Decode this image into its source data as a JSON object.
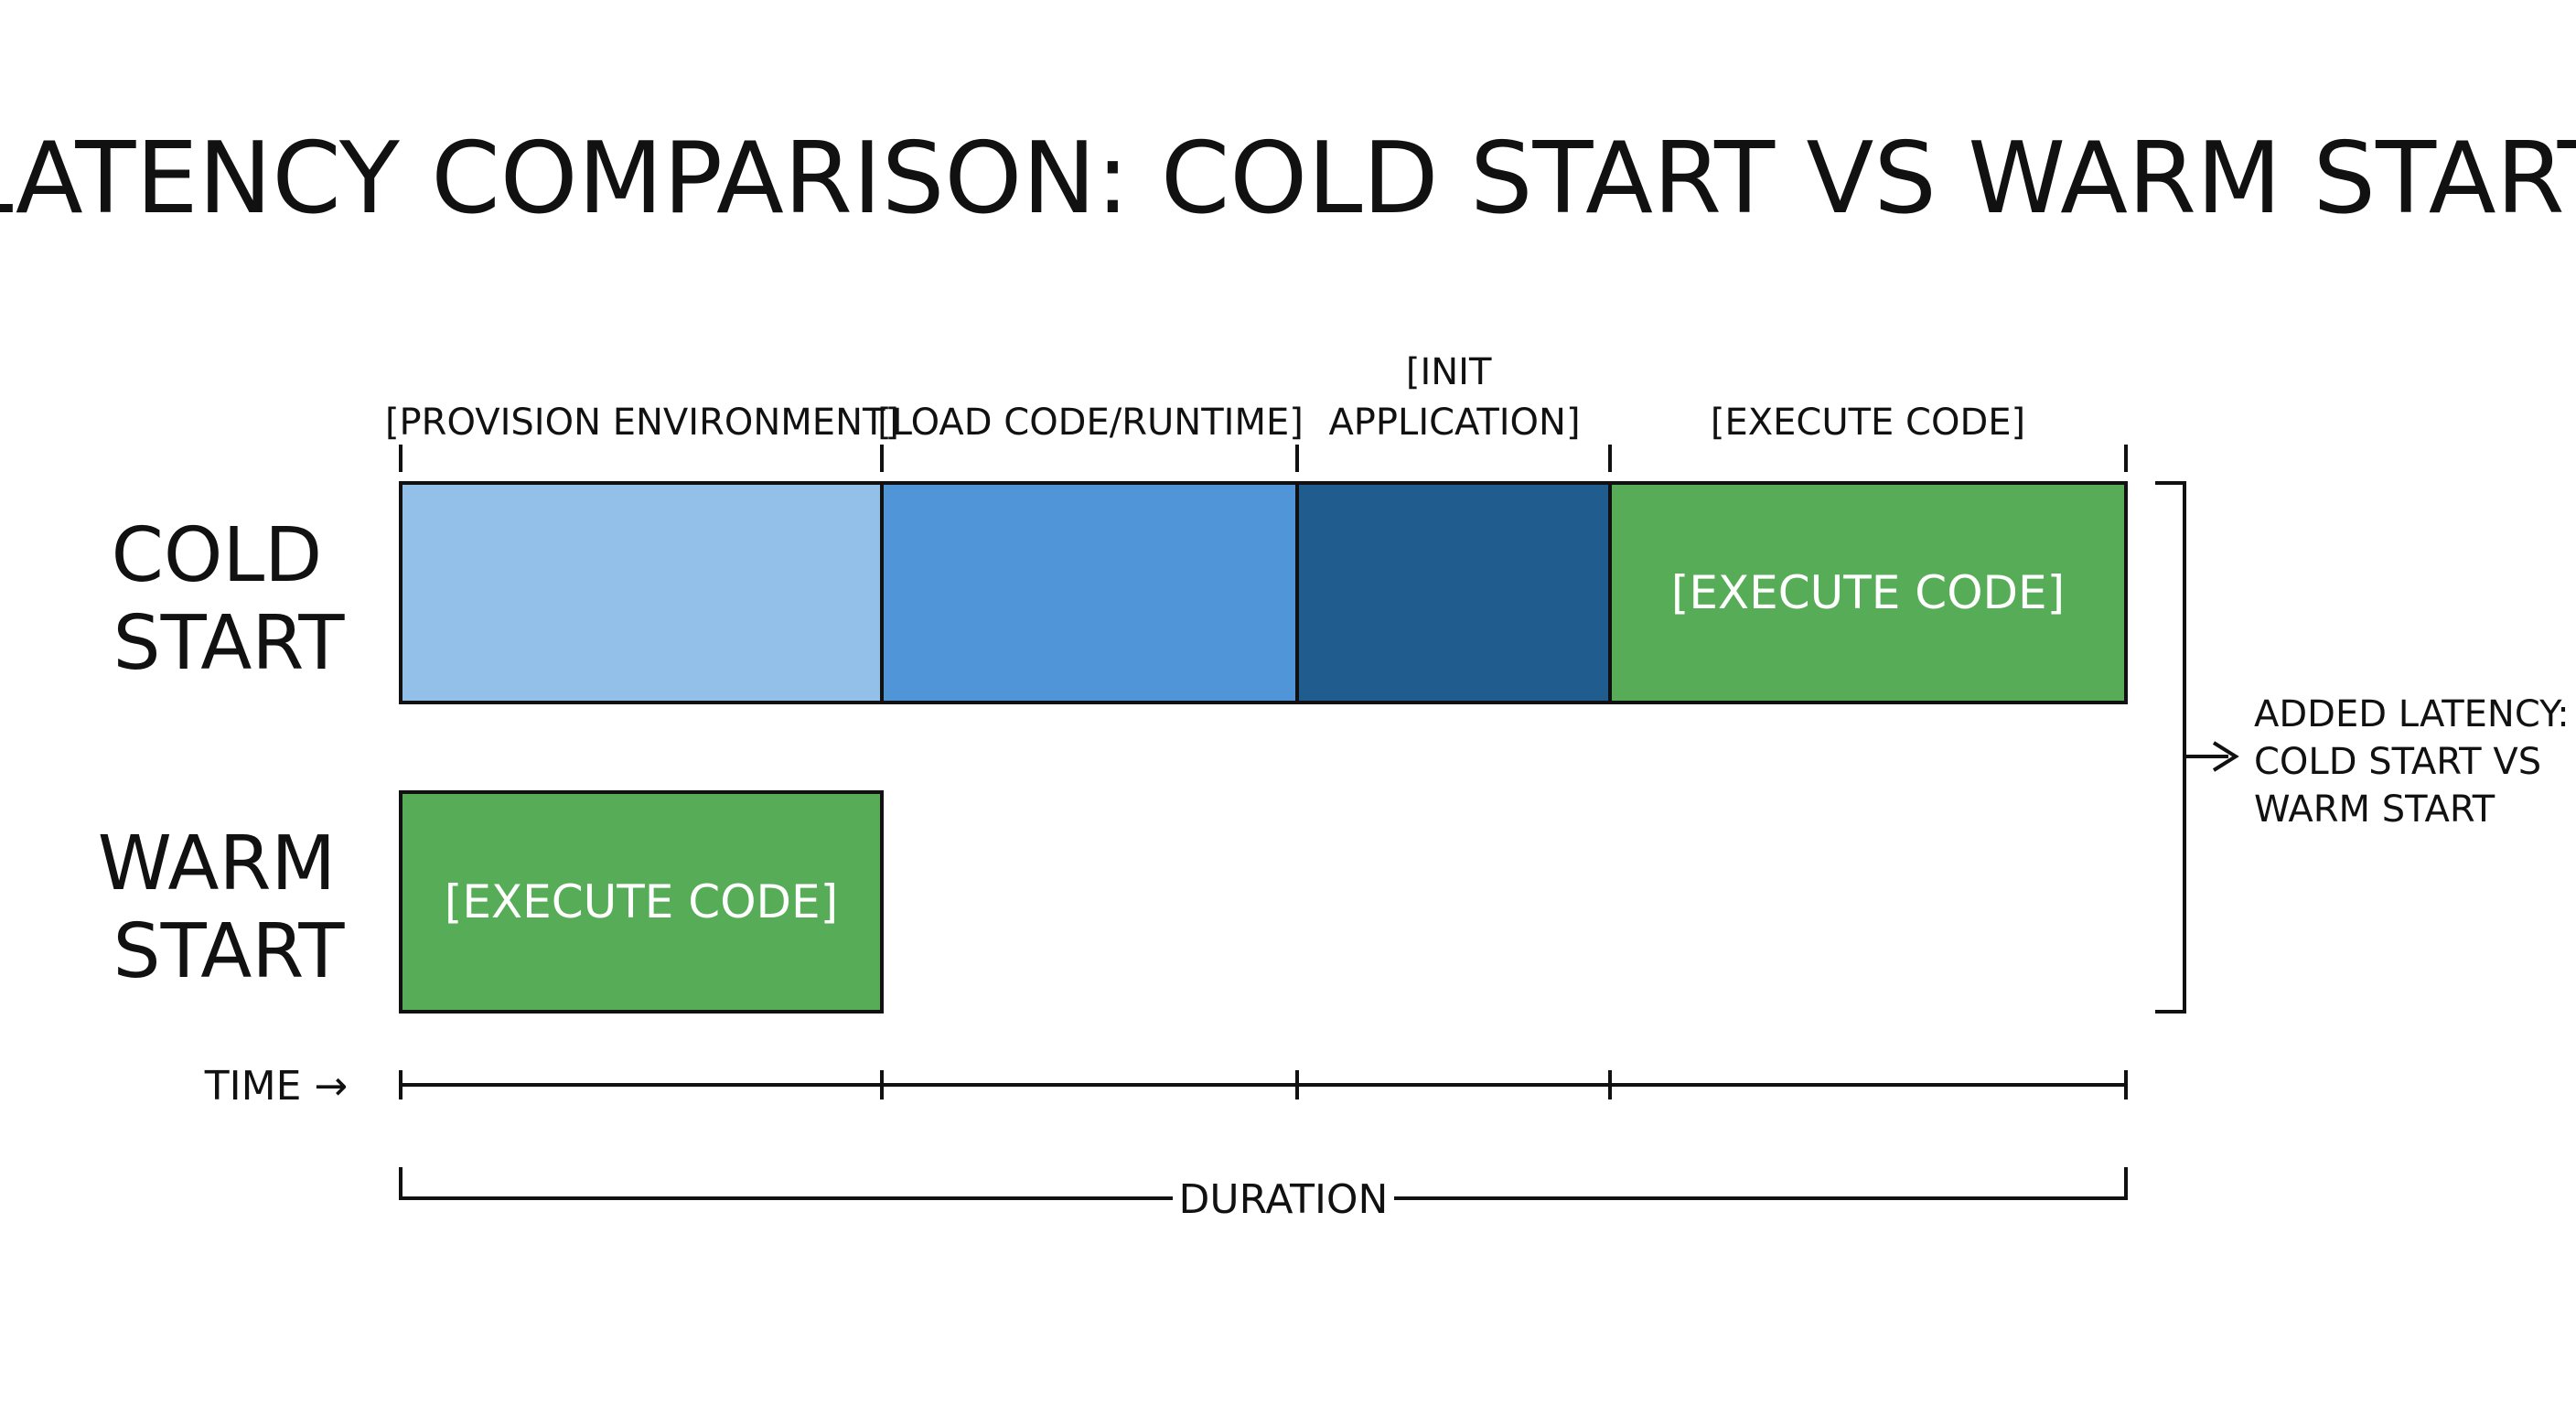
{
  "title": "LATENCY COMPARISON: COLD START VS WARM START",
  "phases": [
    {
      "label_lines": [
        "[PROVISION ENVIRONMENT]"
      ],
      "fill": "#93C0E9"
    },
    {
      "label_lines": [
        "[LOAD CODE/RUNTIME]"
      ],
      "fill": "#4F95D8"
    },
    {
      "label_lines": [
        "[INIT",
        "APPLICATION]"
      ],
      "fill": "#215C8E"
    },
    {
      "label_lines": [
        "[EXECUTE CODE]"
      ],
      "fill": "#57AD57"
    }
  ],
  "rows": {
    "cold": {
      "label_lines": [
        "COLD",
        "START"
      ],
      "box_label": "[EXECUTE CODE]"
    },
    "warm": {
      "label_lines": [
        "WARM",
        "START"
      ],
      "box_label": "[EXECUTE CODE]",
      "fill": "#57AD57"
    }
  },
  "side_annotation": {
    "lines": [
      "ADDED LATENCY:",
      "COLD START VS",
      "WARM START"
    ]
  },
  "axis": {
    "time_label": "TIME →",
    "duration_label": "DURATION"
  },
  "colors": {
    "ink": "#111111",
    "execute_green": "#57AD57",
    "provision_blue": "#93C0E9",
    "load_blue": "#4F95D8",
    "init_blue": "#215C8E"
  }
}
